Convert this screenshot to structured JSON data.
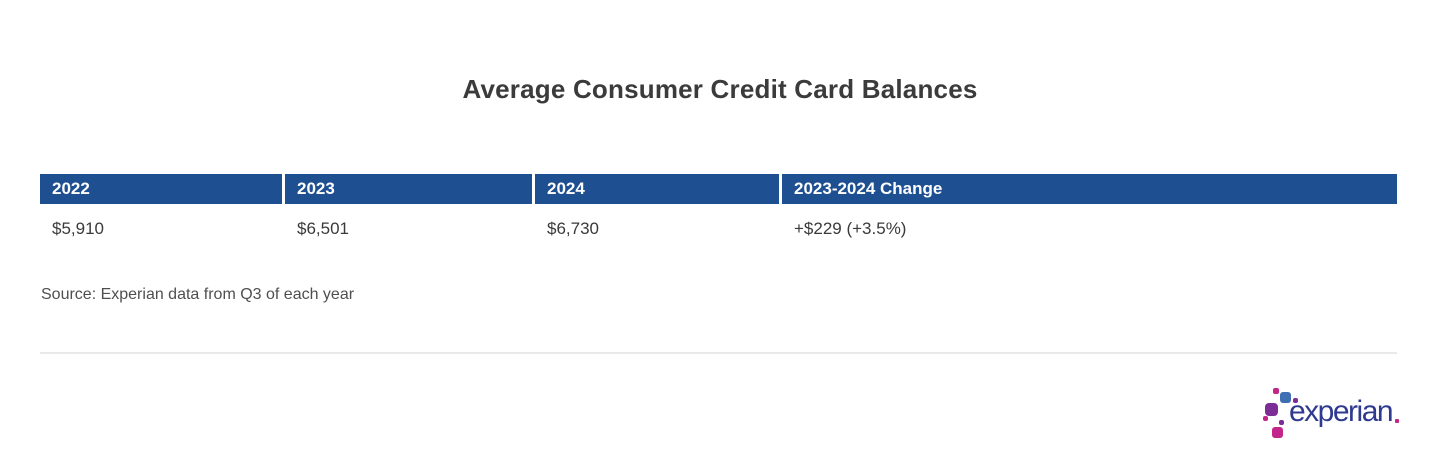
{
  "title": "Average Consumer Credit Card Balances",
  "table": {
    "columns": [
      {
        "label": "2022"
      },
      {
        "label": "2023"
      },
      {
        "label": "2024"
      },
      {
        "label": "2023-2024 Change"
      }
    ],
    "rows": [
      [
        "$5,910",
        "$6,501",
        "$6,730",
        "+$229 (+3.5%)"
      ]
    ]
  },
  "source_note": "Source: Experian data from Q3 of each year",
  "logo": {
    "wordmark": "experian"
  },
  "colors": {
    "header_bg": "#1d4f91",
    "header_text": "#ffffff",
    "title_text": "#3b3b3b",
    "body_text": "#3a3a3a",
    "source_text": "#4f4f4f",
    "divider": "#e9e9e9",
    "logo_wordmark": "#2f3a8f",
    "logo_blue": "#406eb3",
    "logo_purple": "#7d2d96",
    "logo_magenta": "#c2268b"
  },
  "chart_data": {
    "type": "table",
    "title": "Average Consumer Credit Card Balances",
    "columns": [
      "2022",
      "2023",
      "2024",
      "2023-2024 Change"
    ],
    "rows": [
      [
        "$5,910",
        "$6,501",
        "$6,730",
        "+$229 (+3.5%)"
      ]
    ],
    "values": {
      "2022": 5910,
      "2023": 6501,
      "2024": 6730
    },
    "change_2023_2024": {
      "amount_usd": 229,
      "percent": 3.5
    },
    "source": "Source: Experian data from Q3 of each year",
    "legend_position": "none",
    "grid": false
  }
}
